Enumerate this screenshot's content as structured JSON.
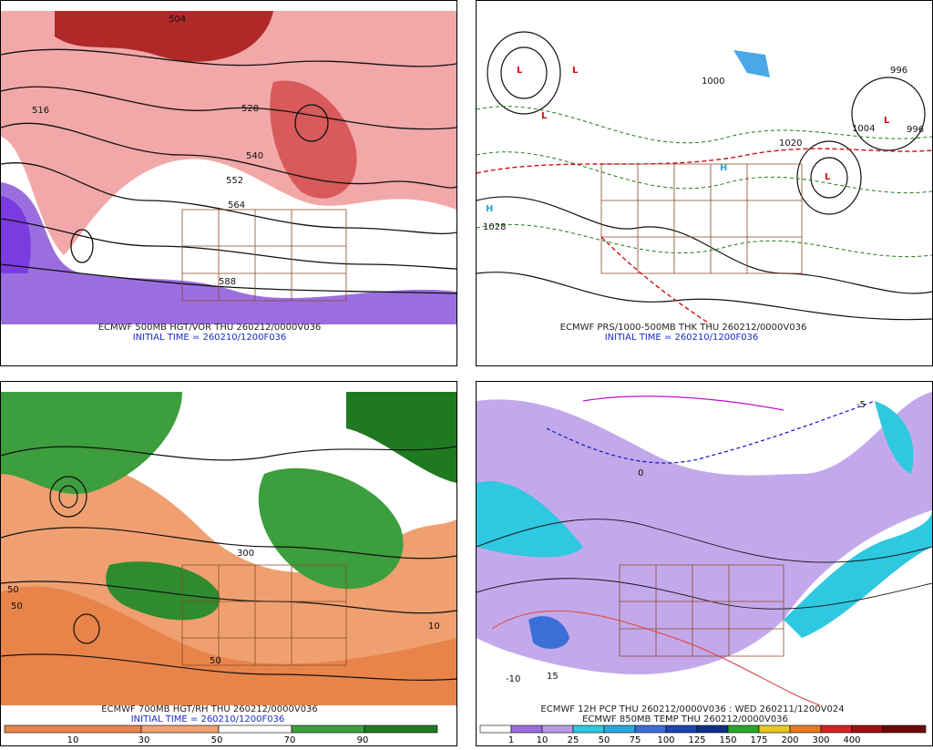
{
  "panels": [
    {
      "caption": [
        "ECMWF 500MB HGT/VOR THU 260212/0000V036",
        "INITIAL TIME = 260210/1200F036"
      ],
      "contour_labels": [
        "504",
        "516",
        "528",
        "540",
        "552",
        "564",
        "588"
      ]
    },
    {
      "caption": [
        "ECMWF PRS/1000-500MB THK THU 260212/0000V036",
        "INITIAL TIME = 260210/1200F036"
      ],
      "contour_labels": [
        "996",
        "1004",
        "1020",
        "1028",
        "996",
        "1000"
      ]
    },
    {
      "caption": [
        "ECMWF 700MB HGT/RH THU 260212/0000V036",
        "INITIAL TIME = 260210/1200F036"
      ],
      "contour_labels": [
        "50",
        "50",
        "10",
        "300",
        "50"
      ],
      "colorbar": [
        "10",
        "30",
        "50",
        "70",
        "90"
      ]
    },
    {
      "caption": [
        "ECMWF 12H PCP THU 260212/0000V036 : WED 260211/1200V024",
        "ECMWF 850MB TEMP THU 260212/0000V036"
      ],
      "contour_labels": [
        "-5",
        "0",
        "15",
        "-10"
      ],
      "colorbar": [
        "1",
        "10",
        "25",
        "50",
        "75",
        "100",
        "125",
        "150",
        "175",
        "200",
        "300",
        "400"
      ]
    }
  ]
}
